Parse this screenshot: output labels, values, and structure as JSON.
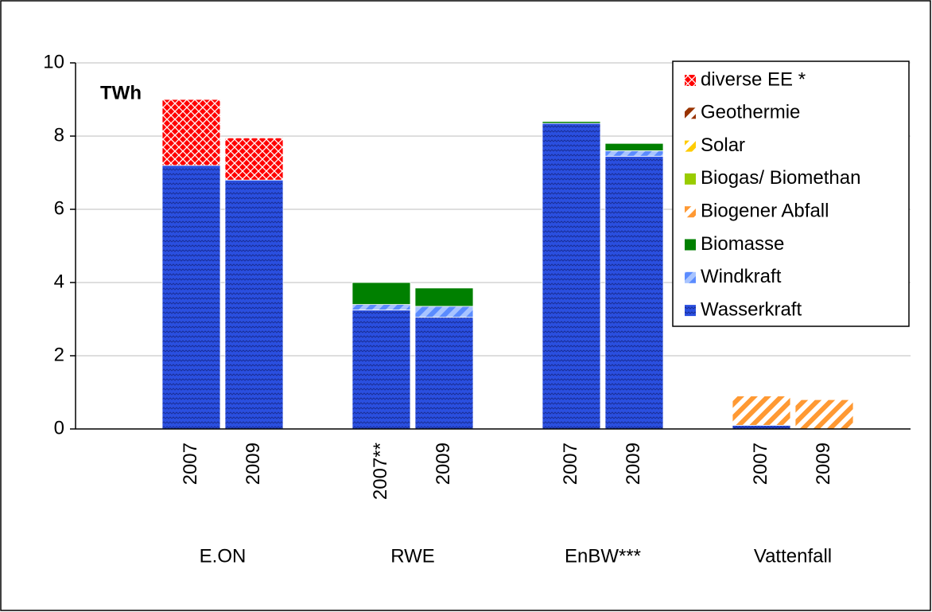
{
  "chart_data": {
    "type": "stacked_bar",
    "y_label": "TWh",
    "categories": [
      "2007",
      "2009",
      "2007**",
      "2009",
      "2007",
      "2009",
      "2007",
      "2009"
    ],
    "groups": [
      "E.ON",
      "RWE",
      "EnBW***",
      "Vattenfall"
    ],
    "ylim": [
      0,
      10
    ],
    "yticks": [
      0,
      2,
      4,
      6,
      8,
      10
    ],
    "grid": true,
    "legend": "upper right",
    "series": [
      {
        "name": "Wasserkraft",
        "color": "#2a4fe0",
        "pattern": "wave",
        "values": [
          7.2,
          6.8,
          3.25,
          3.05,
          8.35,
          7.45,
          0.1,
          0
        ]
      },
      {
        "name": "Windkraft",
        "color": "#5b8cff",
        "pattern": "diagonal",
        "values": [
          0,
          0,
          0.15,
          0.3,
          0,
          0.15,
          0,
          0
        ]
      },
      {
        "name": "Biomasse",
        "color": "#008000",
        "pattern": "solid",
        "values": [
          0,
          0,
          0.6,
          0.5,
          0.05,
          0.2,
          0,
          0
        ]
      },
      {
        "name": "Biogener Abfall",
        "color": "#ff9933",
        "pattern": "diagonal",
        "values": [
          0,
          0,
          0,
          0,
          0,
          0,
          0.8,
          0.8
        ]
      },
      {
        "name": "Biogas/ Biomethan",
        "color": "#99cc00",
        "pattern": "solid",
        "values": [
          0,
          0,
          0,
          0,
          0,
          0,
          0,
          0
        ]
      },
      {
        "name": "Solar",
        "color": "#ffcc00",
        "pattern": "diagonal",
        "values": [
          0,
          0,
          0,
          0,
          0,
          0,
          0,
          0
        ]
      },
      {
        "name": "Geothermie",
        "color": "#993300",
        "pattern": "diagonal",
        "values": [
          0,
          0,
          0,
          0,
          0,
          0,
          0,
          0
        ]
      },
      {
        "name": "diverse EE *",
        "color": "#ff0000",
        "pattern": "crosshatch",
        "values": [
          1.8,
          1.15,
          0,
          0,
          0,
          0,
          0,
          0
        ]
      }
    ]
  }
}
